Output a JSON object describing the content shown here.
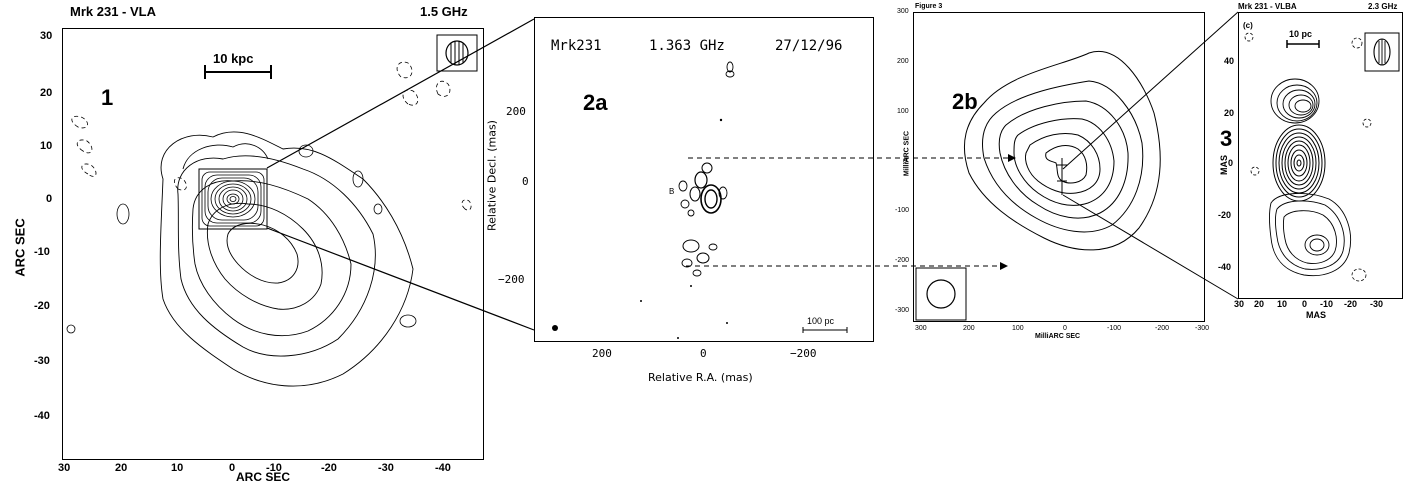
{
  "panel1": {
    "source": "Mrk 231 - VLA",
    "frequency": "1.5 GHz",
    "label": "1",
    "scalebar": "10 kpc",
    "xlabel": "ARC SEC",
    "ylabel": "ARC SEC",
    "xticks": [
      "30",
      "20",
      "10",
      "0",
      "-10",
      "-20",
      "-30",
      "-40"
    ],
    "yticks": [
      "30",
      "20",
      "10",
      "0",
      "-10",
      "-20",
      "-30",
      "-40"
    ]
  },
  "panel2a": {
    "source": "Mrk231",
    "frequency": "1.363 GHz",
    "date": "27/12/96",
    "label": "2a",
    "component": "B",
    "scalebar": "100 pc",
    "xlabel": "Relative R.A. (mas)",
    "ylabel": "Relative Decl. (mas)",
    "xticks": [
      "200",
      "0",
      "−200"
    ],
    "yticks": [
      "200",
      "0",
      "−200"
    ]
  },
  "panel2b": {
    "caption": "Figure 3",
    "label": "2b",
    "xlabel": "MilliARC SEC",
    "ylabel": "MilliARC SEC",
    "xticks": [
      "300",
      "200",
      "100",
      "0",
      "-100",
      "-200",
      "-300"
    ],
    "yticks": [
      "300",
      "200",
      "100",
      "0",
      "-100",
      "-200",
      "-300"
    ]
  },
  "panel3": {
    "source": "Mrk 231 - VLBA",
    "frequency": "2.3 GHz",
    "sublabel": "(c)",
    "label": "3",
    "scalebar": "10 pc",
    "xlabel": "MAS",
    "ylabel": "MAS",
    "xticks": [
      "30",
      "20",
      "10",
      "0",
      "-10",
      "-20",
      "-30"
    ],
    "yticks": [
      "40",
      "20",
      "0",
      "-20",
      "-40"
    ]
  }
}
